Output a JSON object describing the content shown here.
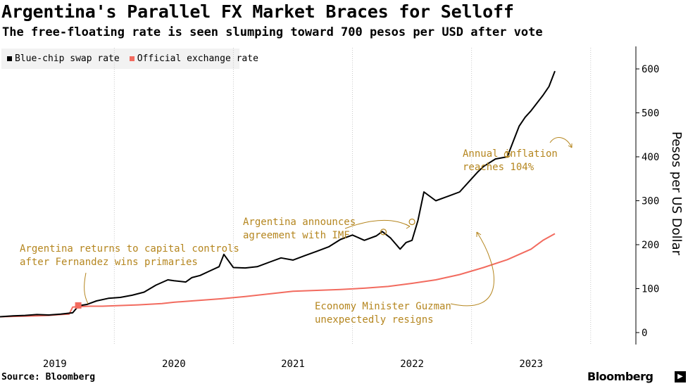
{
  "header": {
    "title": "Argentina's Parallel FX Market Braces for Selloff",
    "subtitle": "The free-floating rate is seen slumping toward 700 pesos per USD after vote"
  },
  "legend": [
    {
      "label": "Blue-chip swap rate",
      "color": "#000000"
    },
    {
      "label": "Official exchange rate",
      "color": "#f26b5f"
    }
  ],
  "footer": {
    "source": "Source: Bloomberg",
    "brand": "Bloomberg"
  },
  "chart_data": {
    "type": "line",
    "ylabel": "Pesos per US Dollar",
    "ylim": [
      0,
      600
    ],
    "yticks": [
      0,
      100,
      200,
      300,
      400,
      500,
      600
    ],
    "xlim": [
      2018.54,
      2023.88
    ],
    "xticks": [
      {
        "label": "2019",
        "value": 2019.0
      },
      {
        "label": "2020",
        "value": 2020.0
      },
      {
        "label": "2021",
        "value": 2021.0
      },
      {
        "label": "2022",
        "value": 2022.0
      },
      {
        "label": "2023",
        "value": 2023.0
      }
    ],
    "grid": "vertical dotted",
    "legend_position": "top-left",
    "series": [
      {
        "name": "Blue-chip swap rate",
        "color": "#000000",
        "x": [
          2018.54,
          2018.65,
          2018.75,
          2018.85,
          2018.95,
          2019.05,
          2019.15,
          2019.2,
          2019.27,
          2019.35,
          2019.45,
          2019.55,
          2019.65,
          2019.75,
          2019.85,
          2019.95,
          2020.0,
          2020.1,
          2020.15,
          2020.22,
          2020.3,
          2020.38,
          2020.42,
          2020.5,
          2020.6,
          2020.7,
          2020.8,
          2020.9,
          2021.0,
          2021.1,
          2021.2,
          2021.3,
          2021.4,
          2021.5,
          2021.6,
          2021.7,
          2021.75,
          2021.82,
          2021.9,
          2021.95,
          2022.0,
          2022.05,
          2022.1,
          2022.2,
          2022.3,
          2022.4,
          2022.5,
          2022.55,
          2022.6,
          2022.7,
          2022.8,
          2022.85,
          2022.9,
          2022.95,
          2023.0,
          2023.1,
          2023.15,
          2023.2
        ],
        "y": [
          36,
          38,
          39,
          41,
          40,
          42,
          45,
          61,
          64,
          72,
          78,
          80,
          85,
          92,
          108,
          120,
          118,
          115,
          125,
          130,
          140,
          150,
          178,
          148,
          147,
          150,
          160,
          170,
          165,
          175,
          185,
          195,
          212,
          222,
          210,
          220,
          230,
          215,
          190,
          205,
          210,
          255,
          320,
          300,
          310,
          320,
          350,
          365,
          378,
          395,
          400,
          435,
          470,
          490,
          505,
          540,
          560,
          595
        ]
      },
      {
        "name": "Official exchange rate",
        "color": "#f26b5f",
        "x": [
          2018.54,
          2018.7,
          2018.85,
          2018.95,
          2019.05,
          2019.12,
          2019.15,
          2019.2,
          2019.3,
          2019.4,
          2019.5,
          2019.7,
          2019.9,
          2020.0,
          2020.2,
          2020.4,
          2020.6,
          2020.8,
          2021.0,
          2021.2,
          2021.4,
          2021.6,
          2021.8,
          2022.0,
          2022.2,
          2022.4,
          2022.6,
          2022.8,
          2023.0,
          2023.1,
          2023.2
        ],
        "y": [
          36,
          37,
          38,
          39,
          41,
          42,
          58,
          59,
          60,
          60,
          61,
          63,
          66,
          69,
          73,
          77,
          82,
          88,
          94,
          96,
          98,
          101,
          105,
          112,
          120,
          132,
          148,
          166,
          190,
          210,
          225
        ]
      }
    ],
    "markers": [
      {
        "series": "Blue-chip swap rate",
        "x": 2019.2,
        "y": 61,
        "color": "#f26b5f"
      },
      {
        "series": "Blue-chip swap rate",
        "x": 2021.76,
        "y": 229,
        "color": "#b5861f"
      },
      {
        "series": "Blue-chip swap rate",
        "x": 2022.0,
        "y": 252,
        "color": "#b5861f"
      },
      {
        "series": "Blue-chip swap rate",
        "x": 2022.8,
        "y": 405,
        "color": "#b5861f"
      }
    ],
    "annotations": [
      {
        "lines": [
          "Argentina returns to capital controls",
          "after Fernandez wins primaries"
        ],
        "color": "#b5861f"
      },
      {
        "lines": [
          "Argentina announces",
          "agreement with IMF"
        ],
        "color": "#b5861f"
      },
      {
        "lines": [
          "Annual inflation",
          "reaches 104%"
        ],
        "color": "#b5861f"
      },
      {
        "lines": [
          "Economy Minister Guzman",
          "unexpectedly resigns"
        ],
        "color": "#b5861f"
      }
    ]
  }
}
